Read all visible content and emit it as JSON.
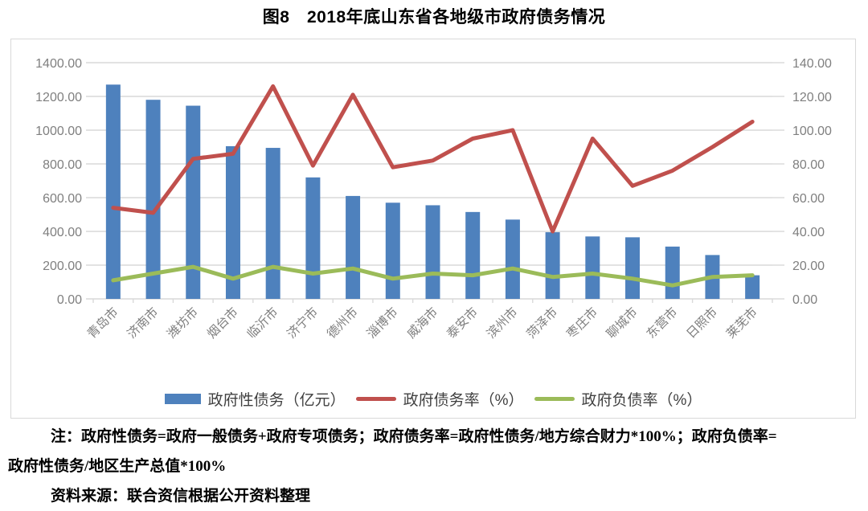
{
  "title": "图8　2018年底山东省各地级市政府债务情况",
  "colors": {
    "bar": "#4e81bd",
    "debt_ratio_line": "#c0504d",
    "liability_ratio_line": "#9bbb59",
    "axis_text": "#7f7f7f",
    "gridline": "#d9d9d9",
    "frame_border": "#d9d9d9"
  },
  "chart_data": {
    "type": "bar+line combo",
    "title": "图8　2018年底山东省各地级市政府债务情况",
    "categories": [
      "青岛市",
      "济南市",
      "潍坊市",
      "烟台市",
      "临沂市",
      "济宁市",
      "德州市",
      "淄博市",
      "威海市",
      "泰安市",
      "滨州市",
      "菏泽市",
      "枣庄市",
      "聊城市",
      "东营市",
      "日照市",
      "莱芜市"
    ],
    "series": [
      {
        "name": "政府性债务（亿元）",
        "type": "bar",
        "axis": "left",
        "color": "#4e81bd",
        "values": [
          1270,
          1180,
          1145,
          905,
          895,
          720,
          610,
          570,
          555,
          515,
          470,
          395,
          370,
          365,
          310,
          260,
          140
        ]
      },
      {
        "name": "政府债务率（%）",
        "type": "line",
        "axis": "right",
        "color": "#c0504d",
        "values": [
          54,
          51,
          83,
          86,
          126,
          79,
          121,
          78,
          82,
          95,
          100,
          40,
          95,
          67,
          76,
          90,
          105
        ]
      },
      {
        "name": "政府负债率（%）",
        "type": "line",
        "axis": "right",
        "color": "#9bbb59",
        "values": [
          11,
          15,
          19,
          12,
          19,
          15,
          18,
          12,
          15,
          14,
          18,
          13,
          15,
          12,
          8,
          13,
          14
        ]
      }
    ],
    "left_axis": {
      "min": 0,
      "max": 1400,
      "step": 200,
      "tick_labels": [
        "1400.00",
        "1200.00",
        "1000.00",
        "800.00",
        "600.00",
        "400.00",
        "200.00",
        "0.00"
      ]
    },
    "right_axis": {
      "min": 0,
      "max": 140,
      "step": 20,
      "tick_labels": [
        "140.00",
        "120.00",
        "100.00",
        "80.00",
        "60.00",
        "40.00",
        "20.00",
        "0.00"
      ]
    },
    "grid": true,
    "legend_position": "bottom"
  },
  "notes": {
    "line1": "注：政府性债务=政府一般债务+政府专项债务；政府债务率=政府性债务/地方综合财力*100%；政府负债率=",
    "line2": "政府性债务/地区生产总值*100%",
    "source": "资料来源：联合资信根据公开资料整理"
  }
}
